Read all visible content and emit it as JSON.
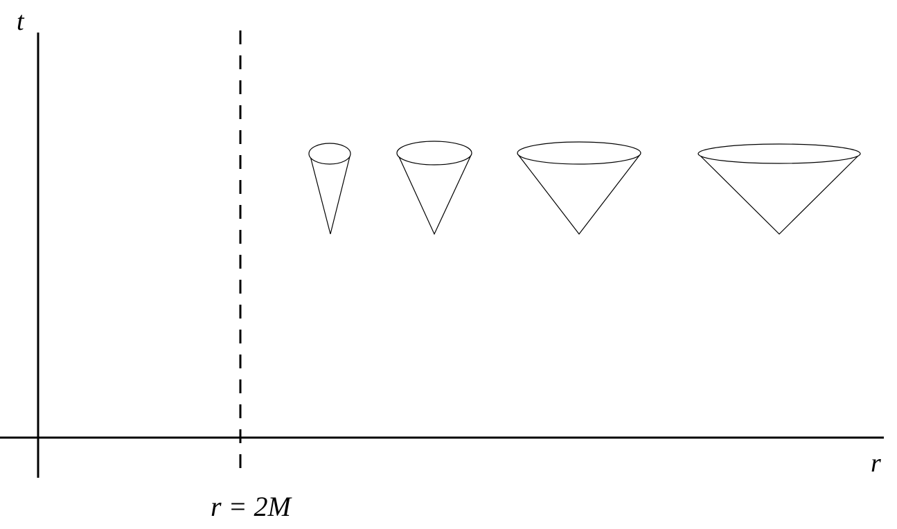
{
  "axes": {
    "vertical_label": "t",
    "horizontal_label": "r"
  },
  "horizon": {
    "label": "r = 2M"
  },
  "light_cones": [
    {
      "name": "light-cone-1"
    },
    {
      "name": "light-cone-2"
    },
    {
      "name": "light-cone-3"
    },
    {
      "name": "light-cone-4"
    }
  ]
}
